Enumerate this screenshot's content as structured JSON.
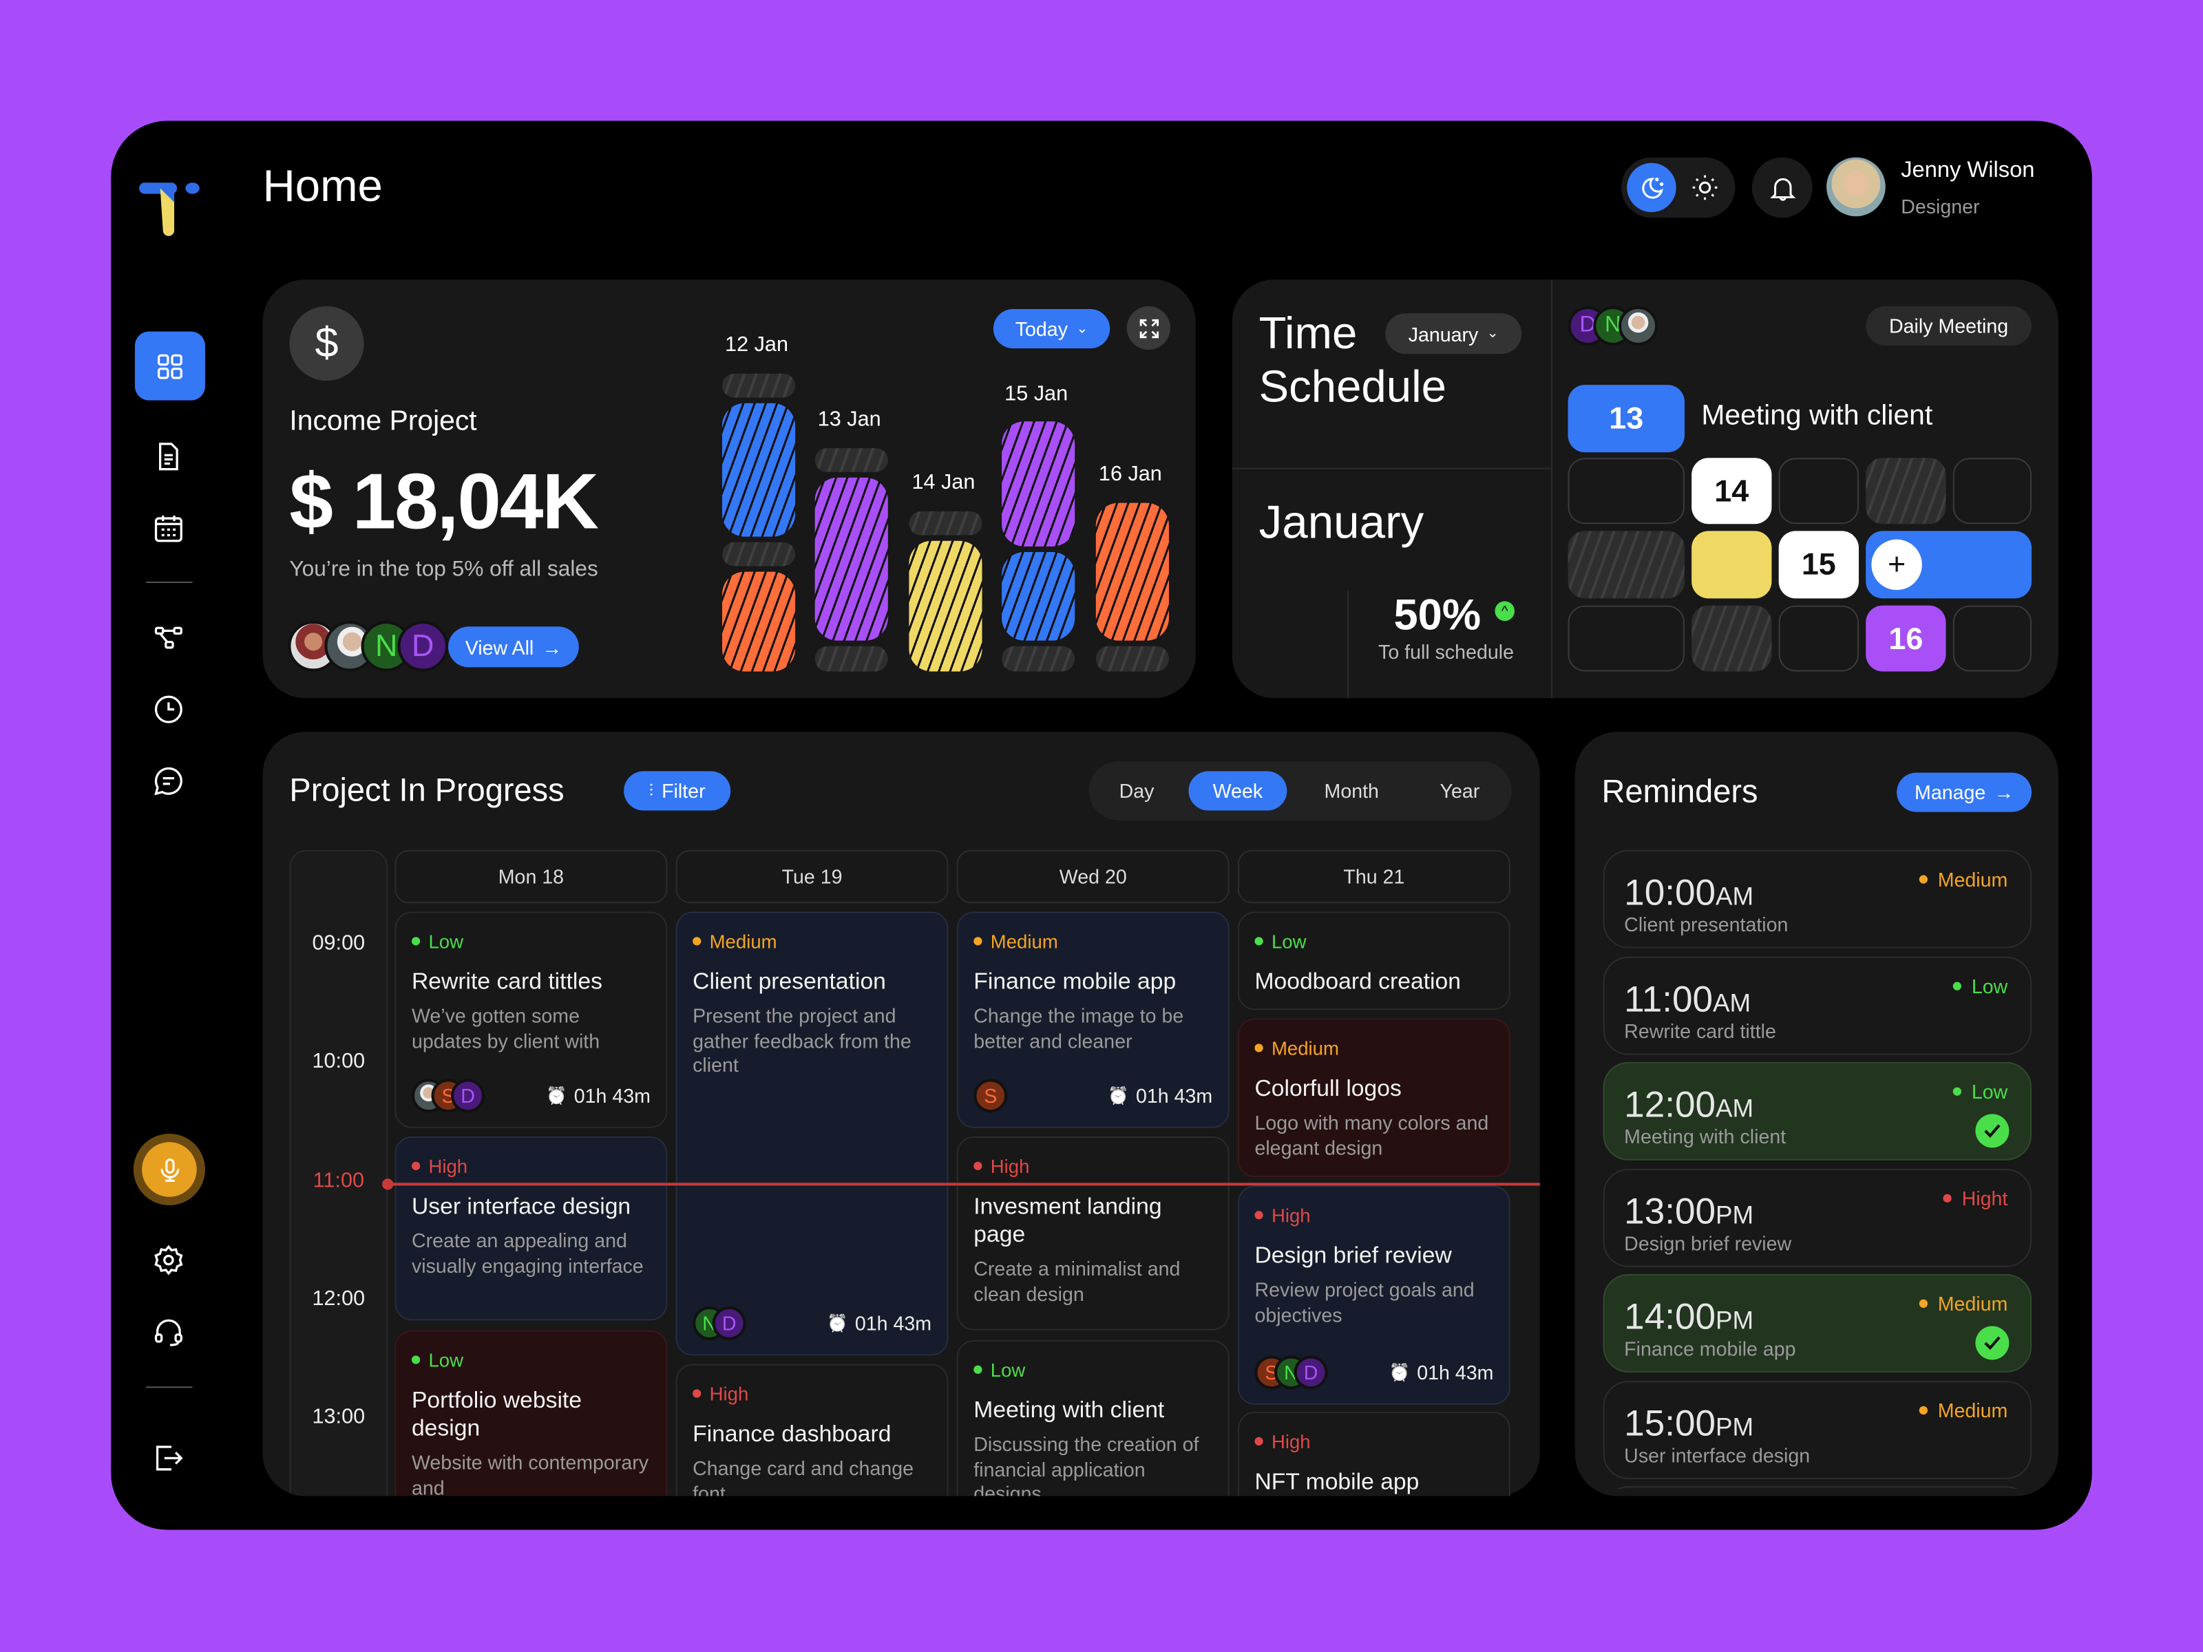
{
  "header": {
    "title": "Home",
    "theme_toggle": {
      "active": "dark",
      "options": [
        "moon-icon",
        "sun-icon"
      ]
    },
    "user": {
      "name": "Jenny Wilson",
      "role": "Designer"
    }
  },
  "sidebar": {
    "items": [
      "dashboard-icon",
      "document-icon",
      "calendar-icon",
      "flow-icon",
      "clock-icon",
      "chat-icon"
    ],
    "active": "dashboard-icon",
    "bottom": [
      "microphone-icon",
      "gear-icon",
      "headset-icon",
      "logout-icon"
    ]
  },
  "income": {
    "title": "Income Project",
    "amount": "$ 18,04K",
    "subtitle": "You’re in the top 5% off all sales",
    "view_all": "View All",
    "period": "Today",
    "avatars": [
      "",
      "",
      "N",
      "D"
    ],
    "bars": [
      {
        "label": "12 Jan"
      },
      {
        "label": "13 Jan"
      },
      {
        "label": "14 Jan"
      },
      {
        "label": "15 Jan"
      },
      {
        "label": "16 Jan"
      }
    ]
  },
  "schedule": {
    "title_line1": "Time",
    "title_line2": "Schedule",
    "month_select": "January",
    "month": "January",
    "percent": "50%",
    "percent_caption": "To full schedule",
    "tag": "Daily Meeting",
    "event": "Meeting with client",
    "avatars": [
      "D",
      "N",
      ""
    ],
    "days": {
      "d13": "13",
      "d14": "14",
      "d15": "15",
      "d16": "16"
    }
  },
  "projects": {
    "title": "Project In Progress",
    "filter": "Filter",
    "views": [
      "Day",
      "Week",
      "Month",
      "Year"
    ],
    "active_view": "Week",
    "days": [
      "Mon 18",
      "Tue 19",
      "Wed 20",
      "Thu 21"
    ],
    "times": [
      "09:00",
      "10:00",
      "11:00",
      "12:00",
      "13:00"
    ],
    "current_time": "11:00",
    "tasks": [
      [
        {
          "priority": "Low",
          "title": "Rewrite card tittles",
          "desc": "We’ve gotten some updates by client with",
          "avatars": [
            "",
            "S",
            "D"
          ],
          "duration": "01h 43m"
        },
        {
          "priority": "High",
          "title": "User interface design",
          "desc": "Create an appealing and visually engaging interface"
        },
        {
          "priority": "Low",
          "title": "Portfolio website design",
          "desc": "Website with contemporary and"
        }
      ],
      [
        {
          "priority": "Medium",
          "title": "Client presentation",
          "desc": "Present the project and gather feedback from the client",
          "avatars": [
            "N",
            "D"
          ],
          "duration": "01h 43m"
        },
        {
          "priority": "High",
          "title": "Finance dashboard",
          "desc": "Change card and change font"
        }
      ],
      [
        {
          "priority": "Medium",
          "title": "Finance mobile app",
          "desc": "Change the image to be better and cleaner",
          "avatars": [
            "S"
          ],
          "duration": "01h 43m"
        },
        {
          "priority": "High",
          "title": "Invesment landing page",
          "desc": "Create a minimalist and clean design"
        },
        {
          "priority": "Low",
          "title": "Meeting with client",
          "desc": "Discussing the creation of financial application designs"
        }
      ],
      [
        {
          "priority": "Low",
          "title": "Moodboard creation",
          "desc": ""
        },
        {
          "priority": "Medium",
          "title": "Colorfull logos",
          "desc": "Logo with many colors and elegant design"
        },
        {
          "priority": "High",
          "title": "Design brief review",
          "desc": "Review project goals and objectives",
          "avatars": [
            "S",
            "N",
            "D"
          ],
          "duration": "01h 43m"
        },
        {
          "priority": "High",
          "title": "NFT mobile app",
          "desc": ""
        }
      ]
    ]
  },
  "reminders": {
    "title": "Reminders",
    "manage": "Manage",
    "items": [
      {
        "time": "10:00",
        "ampm": "AM",
        "title": "Client presentation",
        "priority": "Medium",
        "done": false
      },
      {
        "time": "11:00",
        "ampm": "AM",
        "title": "Rewrite card tittle",
        "priority": "Low",
        "done": false
      },
      {
        "time": "12:00",
        "ampm": "AM",
        "title": "Meeting with client",
        "priority": "Low",
        "done": true
      },
      {
        "time": "13:00",
        "ampm": "PM",
        "title": "Design brief review",
        "priority": "Hight",
        "done": false
      },
      {
        "time": "14:00",
        "ampm": "PM",
        "title": "Finance mobile app",
        "priority": "Medium",
        "done": true
      },
      {
        "time": "15:00",
        "ampm": "PM",
        "title": "User interface design",
        "priority": "Medium",
        "done": false
      }
    ]
  },
  "colors": {
    "background": "#a84cf9",
    "accent": "#3478f6",
    "purple": "#a94ff7",
    "orange": "#ff6d3a",
    "yellow": "#efd964",
    "low": "#4ade4a",
    "medium": "#f5a524",
    "high": "#e04848",
    "mic": "#e8a020"
  }
}
